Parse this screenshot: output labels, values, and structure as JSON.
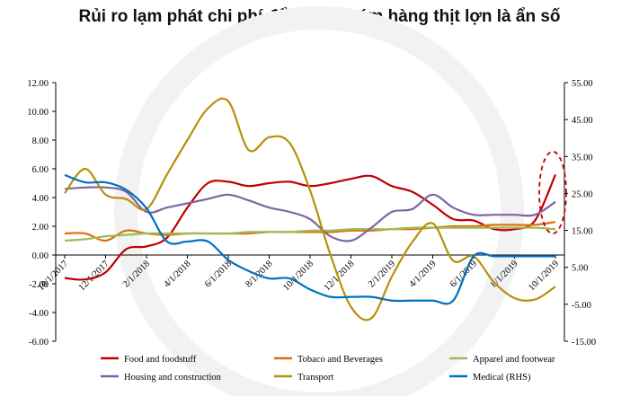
{
  "title": "Rủi ro lạm phát chi phí đẩy: giá nhóm hàng thịt lợn là ẩn số",
  "chart_data": {
    "type": "line",
    "x": [
      "10/1/2017",
      "11/1/2017",
      "12/1/2017",
      "1/1/2018",
      "2/1/2018",
      "3/1/2018",
      "4/1/2018",
      "5/1/2018",
      "6/1/2018",
      "7/1/2018",
      "8/1/2018",
      "9/1/2018",
      "10/1/2018",
      "11/1/2018",
      "12/1/2018",
      "1/1/2019",
      "2/1/2019",
      "3/1/2019",
      "4/1/2019",
      "5/1/2019",
      "6/1/2019",
      "7/1/2019",
      "8/1/2019",
      "9/1/2019",
      "10/1/2019"
    ],
    "x_tick_labels": [
      "10/1/2017",
      "12/1/2017",
      "2/1/2018",
      "4/1/2018",
      "6/1/2018",
      "8/1/2018",
      "10/1/2018",
      "12/1/2018",
      "2/1/2019",
      "4/1/2019",
      "6/1/2019",
      "8/1/2019",
      "10/1/2019"
    ],
    "ylim_left": [
      -6,
      12
    ],
    "yticks_left": [
      "12.00",
      "10.00",
      "8.00",
      "6.00",
      "4.00",
      "2.00",
      "0.00",
      "-2.00",
      "-4.00",
      "-6.00"
    ],
    "ylim_right": [
      -15,
      55
    ],
    "yticks_right": [
      "55.00",
      "45.00",
      "35.00",
      "25.00",
      "15.00",
      "5.00",
      "-5.00",
      "-15.00"
    ],
    "series": [
      {
        "name": "Food and foodstuff",
        "axis": "left",
        "color": "#c00000",
        "values": [
          -1.6,
          -1.7,
          -1.2,
          0.4,
          0.6,
          1.2,
          3.3,
          5.0,
          5.1,
          4.8,
          5.0,
          5.1,
          4.8,
          5.0,
          5.3,
          5.5,
          4.8,
          4.4,
          3.5,
          2.5,
          2.4,
          1.8,
          1.8,
          2.4,
          5.6
        ]
      },
      {
        "name": "Tobaco and Beverages",
        "axis": "left",
        "color": "#e46c0a",
        "values": [
          1.5,
          1.5,
          1.0,
          1.7,
          1.5,
          1.4,
          1.5,
          1.5,
          1.5,
          1.5,
          1.6,
          1.6,
          1.6,
          1.6,
          1.7,
          1.7,
          1.8,
          1.8,
          1.9,
          2.0,
          2.0,
          2.1,
          2.1,
          2.1,
          2.3
        ]
      },
      {
        "name": "Apparel and footwear",
        "axis": "left",
        "color": "#9bbb59",
        "values": [
          1.0,
          1.1,
          1.3,
          1.4,
          1.5,
          1.5,
          1.5,
          1.5,
          1.5,
          1.6,
          1.6,
          1.6,
          1.7,
          1.7,
          1.8,
          1.8,
          1.8,
          1.9,
          1.9,
          1.9,
          1.9,
          1.9,
          1.9,
          1.9,
          1.8
        ]
      },
      {
        "name": "Housing and construction",
        "axis": "left",
        "color": "#8064a2",
        "values": [
          4.6,
          4.7,
          4.7,
          4.4,
          3.0,
          3.3,
          3.6,
          3.9,
          4.2,
          3.8,
          3.3,
          3.0,
          2.5,
          1.3,
          1.0,
          1.9,
          3.0,
          3.2,
          4.2,
          3.3,
          2.8,
          2.8,
          2.8,
          2.8,
          3.7
        ]
      },
      {
        "name": "Transport",
        "axis": "left",
        "color": "#b8900a",
        "values": [
          4.3,
          6.0,
          4.2,
          3.9,
          3.2,
          5.6,
          8.0,
          10.2,
          10.7,
          7.3,
          8.2,
          7.8,
          4.5,
          0.0,
          -3.6,
          -4.4,
          -1.5,
          0.9,
          2.2,
          -0.4,
          -0.1,
          -1.9,
          -3.0,
          -3.1,
          -2.2
        ]
      },
      {
        "name": "Medical (RHS)",
        "axis": "right",
        "color": "#0070c0",
        "values": [
          30,
          28,
          28,
          26,
          21,
          12,
          12,
          12,
          7,
          4,
          2,
          2,
          -1,
          -3,
          -3,
          -3,
          -4,
          -4,
          -4,
          -4,
          8,
          8,
          8,
          8,
          8
        ]
      }
    ],
    "annotation": {
      "type": "dashed-ellipse",
      "color": "#c00000",
      "at_x": "10/1/2019"
    }
  }
}
